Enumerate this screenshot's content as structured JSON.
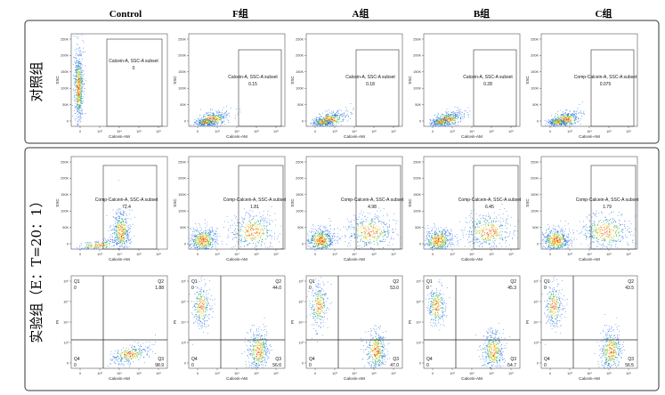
{
  "figure": {
    "column_headers": [
      "Control",
      "F组",
      "A组",
      "B组",
      "C组"
    ],
    "row_headers": [
      "对照组",
      "实验组（E：T=20：1）"
    ]
  },
  "chart_data": [
    {
      "type": "scatter",
      "id": "ctrl_group_row",
      "row_label": "对照组",
      "xlabel": "Calcein-AM",
      "ylabel": "SSC",
      "x_scale": "log",
      "x_ticks": [
        "0",
        "10³",
        "10⁴",
        "10⁵",
        "10⁶"
      ],
      "y_ticks": [
        "0",
        "50K",
        "100K",
        "150K",
        "200K",
        "250K"
      ],
      "panels": [
        {
          "column": "Control",
          "gate_label": "Calcein-A, SSC-A subset",
          "gate_value": "0"
        },
        {
          "column": "F组",
          "gate_label": "Calcein-A, SSC-A subset",
          "gate_value": "0.15"
        },
        {
          "column": "A组",
          "gate_label": "Calcein-A, SSC-A subset",
          "gate_value": "0.18"
        },
        {
          "column": "B组",
          "gate_label": "Calcein-A, SSC-A subset",
          "gate_value": "0.28"
        },
        {
          "column": "C组",
          "gate_label": "Comp-Calcein-A, SSC-A subset",
          "gate_value": "0.075"
        }
      ]
    },
    {
      "type": "scatter",
      "id": "exp_group_row_ssc",
      "row_label": "实验组（E：T=20：1）",
      "xlabel": "Calcein-AM",
      "ylabel": "SSC",
      "x_scale": "log",
      "x_ticks": [
        "0",
        "10³",
        "10⁴",
        "10⁵",
        "10⁶"
      ],
      "y_ticks": [
        "0",
        "50K",
        "100K",
        "150K",
        "200K",
        "250K"
      ],
      "panels": [
        {
          "column": "Control",
          "gate_label": "Comp-Calcein-A, SSC-A subset",
          "gate_value": "72.4"
        },
        {
          "column": "F组",
          "gate_label": "Comp-Calcein-A, SSC-A subset",
          "gate_value": "1.81"
        },
        {
          "column": "A组",
          "gate_label": "Comp-Calcein-A, SSC-A subset",
          "gate_value": "4.98"
        },
        {
          "column": "B组",
          "gate_label": "Comp-Calcein-A, SSC-A subset",
          "gate_value": "6.45"
        },
        {
          "column": "C组",
          "gate_label": "Comp-Calcein-A, SSC-A subset",
          "gate_value": "1.79"
        }
      ]
    },
    {
      "type": "scatter",
      "id": "exp_group_row_pi",
      "row_label": "实验组（E：T=20：1）",
      "xlabel": "Calcein-AM",
      "ylabel": "PI",
      "x_scale": "log",
      "y_scale": "log",
      "x_ticks": [
        "0",
        "10³",
        "10⁴",
        "10⁵",
        "10⁶"
      ],
      "y_ticks": [
        "0",
        "10³",
        "10⁴",
        "10⁵",
        "10⁶"
      ],
      "panels": [
        {
          "column": "Control",
          "Q1": "0",
          "Q2": "1.88",
          "Q3": "98.9",
          "Q4": "0"
        },
        {
          "column": "F组",
          "Q1": "0",
          "Q2": "44.0",
          "Q3": "56.0",
          "Q4": "0"
        },
        {
          "column": "A组",
          "Q1": "0",
          "Q2": "53.0",
          "Q3": "47.0",
          "Q4": "0"
        },
        {
          "column": "B组",
          "Q1": "0",
          "Q2": "45.3",
          "Q3": "54.7",
          "Q4": "0"
        },
        {
          "column": "C组",
          "Q1": "0",
          "Q2": "43.5",
          "Q3": "56.5",
          "Q4": "0"
        }
      ]
    }
  ]
}
